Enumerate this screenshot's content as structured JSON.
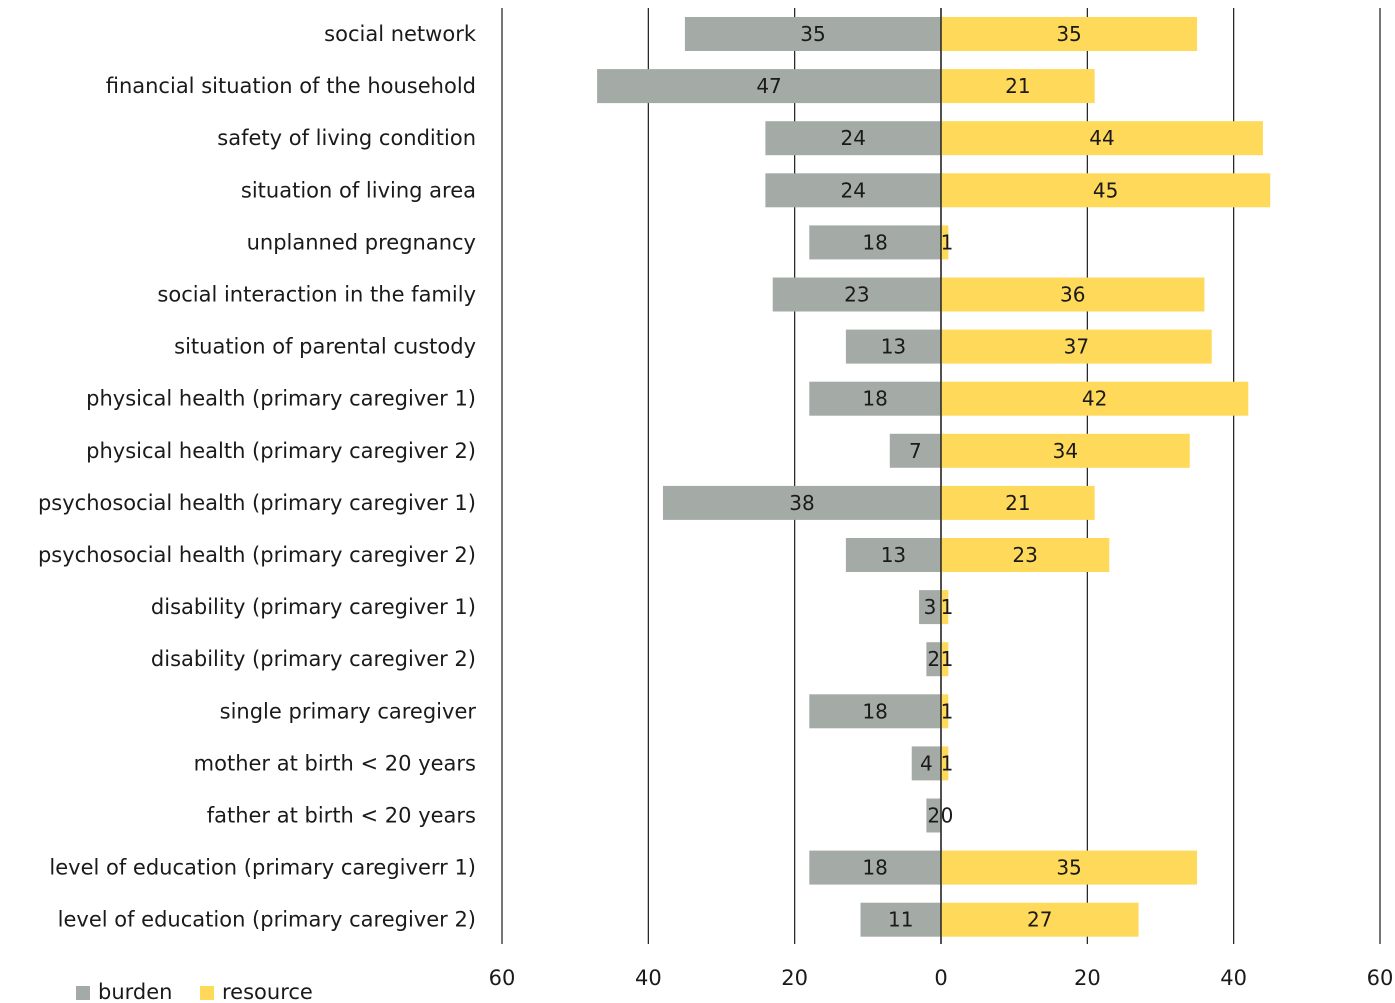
{
  "chart_data": {
    "type": "bar",
    "orientation": "horizontal-diverging",
    "categories": [
      "social network",
      "financial situation of the household",
      "safety of living condition",
      "situation of living area",
      "unplanned pregnancy",
      "social interaction in the family",
      "situation of parental custody",
      "physical health (primary caregiver 1)",
      "physical health (primary caregiver 2)",
      "psychosocial health (primary caregiver 1)",
      "psychosocial health (primary caregiver 2)",
      "disability (primary caregiver 1)",
      "disability (primary caregiver 2)",
      "single primary caregiver",
      "mother at birth < 20 years",
      "father at birth < 20 years",
      "level of education (primary caregiverr 1)",
      "level of education (primary caregiver 2)"
    ],
    "series": [
      {
        "name": "burden",
        "color": "#a4aba7",
        "values": [
          35,
          47,
          24,
          24,
          18,
          23,
          13,
          18,
          7,
          38,
          13,
          3,
          2,
          18,
          4,
          2,
          18,
          11
        ]
      },
      {
        "name": "resource",
        "color": "#fed95a",
        "values": [
          35,
          21,
          44,
          45,
          1,
          36,
          37,
          42,
          34,
          21,
          23,
          1,
          1,
          1,
          1,
          0,
          35,
          27
        ]
      }
    ],
    "xlim": [
      -60,
      60
    ],
    "xticks": [
      -60,
      -40,
      -20,
      0,
      20,
      40,
      60
    ],
    "xtick_labels": [
      "60",
      "40",
      "20",
      "0",
      "20",
      "40",
      "60"
    ],
    "grid": "vertical",
    "legend": "bottom-left",
    "title": "",
    "xlabel": "",
    "ylabel": ""
  }
}
